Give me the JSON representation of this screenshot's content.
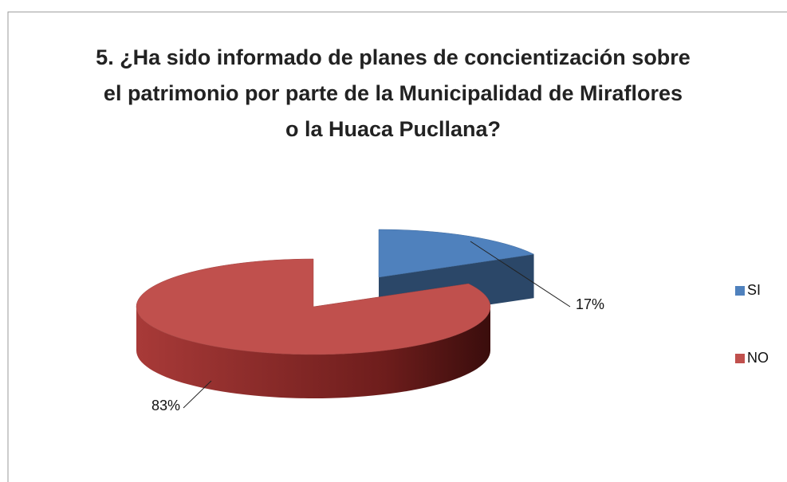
{
  "chart_data": {
    "type": "pie",
    "title": "5. ¿Ha sido informado de planes de concientización sobre el patrimonio por parte de la Municipalidad de Miraflores o la Huaca Pucllana?",
    "categories": [
      "SI",
      "NO"
    ],
    "values": [
      17,
      83
    ],
    "value_labels": [
      "17%",
      "83%"
    ],
    "colors": [
      "#4f81bd",
      "#c0504d"
    ],
    "legend": "right"
  }
}
